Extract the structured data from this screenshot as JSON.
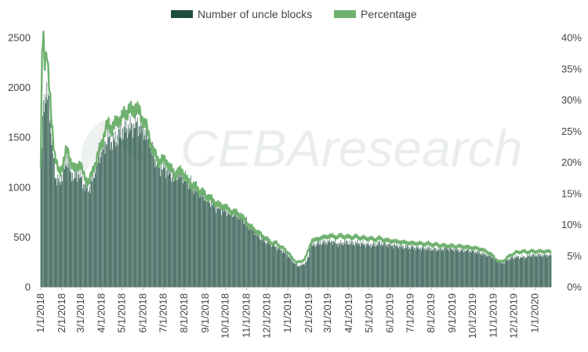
{
  "chart_data": {
    "type": "bar",
    "title": "",
    "xlabel": "",
    "ylabel": "",
    "ylim": [
      0,
      2500
    ],
    "y2lim": [
      0,
      0.4
    ],
    "y_ticks": [
      "0",
      "500",
      "1000",
      "1500",
      "2000",
      "2500"
    ],
    "y2_ticks": [
      "0%",
      "5%",
      "10%",
      "15%",
      "20%",
      "25%",
      "30%",
      "35%",
      "40%"
    ],
    "x_ticks": [
      "1/1/2018",
      "2/1/2018",
      "3/1/2018",
      "4/1/2018",
      "5/1/2018",
      "6/1/2018",
      "7/1/2018",
      "8/1/2018",
      "9/1/2018",
      "10/1/2018",
      "11/1/2018",
      "12/1/2018",
      "1/1/2019",
      "2/1/2019",
      "3/1/2019",
      "4/1/2019",
      "5/1/2019",
      "6/1/2019",
      "7/1/2019",
      "8/1/2019",
      "9/1/2019",
      "10/1/2019",
      "11/1/2019",
      "12/1/2019",
      "1/1/2020"
    ],
    "grid": false,
    "legend": "top-center",
    "x_start": "2018-01-01",
    "x_end": "2020-01-25",
    "series": [
      {
        "name": "Number of uncle blocks",
        "type": "bar",
        "axis": "left",
        "color": "#1d4d40",
        "values": [
          [
            1,
            1200
          ],
          [
            4,
            1850
          ],
          [
            8,
            1950
          ],
          [
            12,
            1850
          ],
          [
            17,
            1400
          ],
          [
            22,
            1100
          ],
          [
            28,
            1050
          ],
          [
            33,
            1150
          ],
          [
            39,
            1300
          ],
          [
            44,
            1150
          ],
          [
            50,
            1100
          ],
          [
            56,
            1150
          ],
          [
            62,
            1050
          ],
          [
            67,
            1000
          ],
          [
            73,
            1000
          ],
          [
            79,
            1150
          ],
          [
            85,
            1300
          ],
          [
            92,
            1400
          ],
          [
            100,
            1500
          ],
          [
            106,
            1450
          ],
          [
            113,
            1500
          ],
          [
            120,
            1550
          ],
          [
            127,
            1600
          ],
          [
            134,
            1600
          ],
          [
            141,
            1650
          ],
          [
            148,
            1600
          ],
          [
            155,
            1550
          ],
          [
            162,
            1450
          ],
          [
            168,
            1300
          ],
          [
            175,
            1200
          ],
          [
            182,
            1200
          ],
          [
            190,
            1150
          ],
          [
            197,
            1100
          ],
          [
            205,
            1150
          ],
          [
            212,
            1100
          ],
          [
            220,
            1050
          ],
          [
            228,
            1000
          ],
          [
            236,
            950
          ],
          [
            244,
            900
          ],
          [
            252,
            850
          ],
          [
            260,
            800
          ],
          [
            268,
            780
          ],
          [
            276,
            760
          ],
          [
            284,
            740
          ],
          [
            292,
            720
          ],
          [
            300,
            680
          ],
          [
            308,
            620
          ],
          [
            316,
            560
          ],
          [
            324,
            500
          ],
          [
            332,
            460
          ],
          [
            340,
            440
          ],
          [
            348,
            400
          ],
          [
            356,
            370
          ],
          [
            364,
            330
          ],
          [
            372,
            260
          ],
          [
            380,
            210
          ],
          [
            386,
            220
          ],
          [
            392,
            250
          ],
          [
            396,
            310
          ],
          [
            398,
            420
          ],
          [
            402,
            420
          ],
          [
            410,
            440
          ],
          [
            420,
            450
          ],
          [
            430,
            460
          ],
          [
            440,
            430
          ],
          [
            450,
            450
          ],
          [
            460,
            440
          ],
          [
            470,
            440
          ],
          [
            480,
            430
          ],
          [
            490,
            420
          ],
          [
            500,
            440
          ],
          [
            510,
            430
          ],
          [
            520,
            420
          ],
          [
            530,
            410
          ],
          [
            540,
            400
          ],
          [
            550,
            400
          ],
          [
            560,
            390
          ],
          [
            570,
            390
          ],
          [
            580,
            380
          ],
          [
            590,
            380
          ],
          [
            600,
            390
          ],
          [
            610,
            380
          ],
          [
            620,
            370
          ],
          [
            630,
            370
          ],
          [
            640,
            360
          ],
          [
            650,
            340
          ],
          [
            660,
            320
          ],
          [
            670,
            300
          ],
          [
            675,
            260
          ],
          [
            680,
            240
          ],
          [
            685,
            250
          ],
          [
            690,
            280
          ],
          [
            695,
            290
          ],
          [
            700,
            300
          ],
          [
            705,
            300
          ],
          [
            710,
            300
          ],
          [
            716,
            300
          ],
          [
            720,
            310
          ],
          [
            724,
            320
          ]
        ]
      },
      {
        "name": "Percentage",
        "type": "line",
        "axis": "right",
        "color": "#6fb16f",
        "values": [
          [
            0,
            0.19
          ],
          [
            2,
            0.38
          ],
          [
            4,
            0.39
          ],
          [
            6,
            0.36
          ],
          [
            9,
            0.385
          ],
          [
            12,
            0.33
          ],
          [
            16,
            0.26
          ],
          [
            20,
            0.22
          ],
          [
            25,
            0.19
          ],
          [
            28,
            0.18
          ],
          [
            33,
            0.2
          ],
          [
            38,
            0.22
          ],
          [
            42,
            0.21
          ],
          [
            48,
            0.19
          ],
          [
            53,
            0.19
          ],
          [
            58,
            0.2
          ],
          [
            63,
            0.18
          ],
          [
            68,
            0.17
          ],
          [
            72,
            0.17
          ],
          [
            78,
            0.19
          ],
          [
            84,
            0.21
          ],
          [
            90,
            0.23
          ],
          [
            95,
            0.25
          ],
          [
            100,
            0.26
          ],
          [
            105,
            0.255
          ],
          [
            110,
            0.26
          ],
          [
            115,
            0.27
          ],
          [
            120,
            0.27
          ],
          [
            125,
            0.28
          ],
          [
            130,
            0.285
          ],
          [
            135,
            0.28
          ],
          [
            140,
            0.29
          ],
          [
            145,
            0.28
          ],
          [
            150,
            0.27
          ],
          [
            155,
            0.26
          ],
          [
            160,
            0.24
          ],
          [
            165,
            0.22
          ],
          [
            170,
            0.21
          ],
          [
            175,
            0.2
          ],
          [
            180,
            0.205
          ],
          [
            186,
            0.2
          ],
          [
            192,
            0.19
          ],
          [
            198,
            0.18
          ],
          [
            204,
            0.185
          ],
          [
            210,
            0.185
          ],
          [
            216,
            0.17
          ],
          [
            222,
            0.165
          ],
          [
            228,
            0.16
          ],
          [
            234,
            0.155
          ],
          [
            240,
            0.15
          ],
          [
            246,
            0.145
          ],
          [
            252,
            0.14
          ],
          [
            258,
            0.135
          ],
          [
            264,
            0.13
          ],
          [
            270,
            0.13
          ],
          [
            276,
            0.125
          ],
          [
            282,
            0.12
          ],
          [
            288,
            0.12
          ],
          [
            294,
            0.115
          ],
          [
            300,
            0.11
          ],
          [
            306,
            0.1
          ],
          [
            312,
            0.095
          ],
          [
            318,
            0.09
          ],
          [
            324,
            0.085
          ],
          [
            330,
            0.08
          ],
          [
            336,
            0.075
          ],
          [
            342,
            0.07
          ],
          [
            348,
            0.07
          ],
          [
            354,
            0.065
          ],
          [
            360,
            0.06
          ],
          [
            366,
            0.055
          ],
          [
            372,
            0.045
          ],
          [
            378,
            0.04
          ],
          [
            384,
            0.04
          ],
          [
            390,
            0.045
          ],
          [
            396,
            0.06
          ],
          [
            400,
            0.075
          ],
          [
            405,
            0.075
          ],
          [
            412,
            0.078
          ],
          [
            420,
            0.08
          ],
          [
            428,
            0.082
          ],
          [
            436,
            0.08
          ],
          [
            444,
            0.082
          ],
          [
            452,
            0.08
          ],
          [
            460,
            0.08
          ],
          [
            468,
            0.08
          ],
          [
            476,
            0.078
          ],
          [
            484,
            0.078
          ],
          [
            492,
            0.076
          ],
          [
            500,
            0.078
          ],
          [
            508,
            0.075
          ],
          [
            516,
            0.074
          ],
          [
            524,
            0.073
          ],
          [
            532,
            0.072
          ],
          [
            540,
            0.071
          ],
          [
            548,
            0.07
          ],
          [
            556,
            0.07
          ],
          [
            564,
            0.069
          ],
          [
            572,
            0.069
          ],
          [
            580,
            0.068
          ],
          [
            588,
            0.067
          ],
          [
            596,
            0.066
          ],
          [
            604,
            0.066
          ],
          [
            612,
            0.065
          ],
          [
            620,
            0.065
          ],
          [
            628,
            0.064
          ],
          [
            636,
            0.063
          ],
          [
            644,
            0.062
          ],
          [
            652,
            0.06
          ],
          [
            660,
            0.056
          ],
          [
            666,
            0.052
          ],
          [
            672,
            0.045
          ],
          [
            678,
            0.04
          ],
          [
            684,
            0.042
          ],
          [
            690,
            0.048
          ],
          [
            696,
            0.052
          ],
          [
            702,
            0.055
          ],
          [
            710,
            0.057
          ],
          [
            718,
            0.056
          ],
          [
            724,
            0.057
          ]
        ]
      }
    ]
  },
  "watermark": "CEBAresearch"
}
